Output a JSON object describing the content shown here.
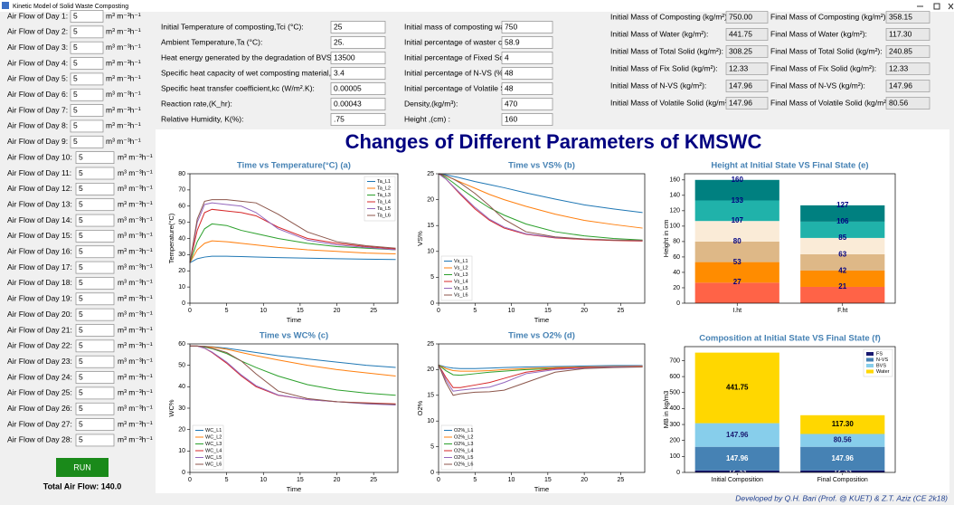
{
  "window": {
    "title": "Kinetic Model of Solid Waste Composting"
  },
  "air_flow": {
    "rows": [
      {
        "label": "Air Flow of Day 1:",
        "value": "5",
        "unit": "m³ m⁻³h⁻¹"
      },
      {
        "label": "Air Flow of Day 2:",
        "value": "5",
        "unit": "m³ m⁻³h⁻¹"
      },
      {
        "label": "Air Flow of Day 3:",
        "value": "5",
        "unit": "m³ m⁻³h⁻¹"
      },
      {
        "label": "Air Flow of Day 4:",
        "value": "5",
        "unit": "m³ m⁻³h⁻¹"
      },
      {
        "label": "Air Flow of Day 5:",
        "value": "5",
        "unit": "m³ m⁻³h⁻¹"
      },
      {
        "label": "Air Flow of Day 6:",
        "value": "5",
        "unit": "m³ m⁻³h⁻¹"
      },
      {
        "label": "Air Flow of Day 7:",
        "value": "5",
        "unit": "m³ m⁻³h⁻¹"
      },
      {
        "label": "Air Flow of Day 8:",
        "value": "5",
        "unit": "m³ m⁻³h⁻¹"
      },
      {
        "label": "Air Flow of Day 9:",
        "value": "5",
        "unit": "m³ m⁻³h⁻¹"
      },
      {
        "label": "Air Flow of Day 10:",
        "value": "5",
        "unit": "m³ m⁻³h⁻¹"
      },
      {
        "label": "Air Flow of Day 11:",
        "value": "5",
        "unit": "m³ m⁻³h⁻¹"
      },
      {
        "label": "Air Flow of Day 12:",
        "value": "5",
        "unit": "m³ m⁻³h⁻¹"
      },
      {
        "label": "Air Flow of Day 13:",
        "value": "5",
        "unit": "m³ m⁻³h⁻¹"
      },
      {
        "label": "Air Flow of Day 14:",
        "value": "5",
        "unit": "m³ m⁻³h⁻¹"
      },
      {
        "label": "Air Flow of Day 15:",
        "value": "5",
        "unit": "m³ m⁻³h⁻¹"
      },
      {
        "label": "Air Flow of Day 16:",
        "value": "5",
        "unit": "m³ m⁻³h⁻¹"
      },
      {
        "label": "Air Flow of Day 17:",
        "value": "5",
        "unit": "m³ m⁻³h⁻¹"
      },
      {
        "label": "Air Flow of Day 18:",
        "value": "5",
        "unit": "m³ m⁻³h⁻¹"
      },
      {
        "label": "Air Flow of Day 19:",
        "value": "5",
        "unit": "m³ m⁻³h⁻¹"
      },
      {
        "label": "Air Flow of Day 20:",
        "value": "5",
        "unit": "m³ m⁻³h⁻¹"
      },
      {
        "label": "Air Flow of Day 21:",
        "value": "5",
        "unit": "m³ m⁻³h⁻¹"
      },
      {
        "label": "Air Flow of Day 22:",
        "value": "5",
        "unit": "m³ m⁻³h⁻¹"
      },
      {
        "label": "Air Flow of Day 23:",
        "value": "5",
        "unit": "m³ m⁻³h⁻¹"
      },
      {
        "label": "Air Flow of Day 24:",
        "value": "5",
        "unit": "m³ m⁻³h⁻¹"
      },
      {
        "label": "Air Flow of Day 25:",
        "value": "5",
        "unit": "m³ m⁻³h⁻¹"
      },
      {
        "label": "Air Flow of Day 26:",
        "value": "5",
        "unit": "m³ m⁻³h⁻¹"
      },
      {
        "label": "Air Flow of Day 27:",
        "value": "5",
        "unit": "m³ m⁻³h⁻¹"
      },
      {
        "label": "Air Flow of Day 28:",
        "value": "5",
        "unit": "m³ m⁻³h⁻¹"
      }
    ],
    "button": "RUN",
    "total": "Total Air Flow: 140.0"
  },
  "parameters": [
    [
      {
        "label": "Initial Temperature of composting,Tci (°C):",
        "value": "25"
      },
      {
        "label": "Ambient Temperature,Ta (°C):",
        "value": "25."
      },
      {
        "label": "Heat energy generated by the degradation of BVS, (kJ/kg):",
        "value": "13500"
      },
      {
        "label": "Specific heat capacity of wet composting material, (J/kg.K):",
        "value": "3.4"
      },
      {
        "label": "Specific heat transfer coefficient,kc (W/m².K):",
        "value": "0.00005"
      },
      {
        "label": "Reaction rate,(K_hr):",
        "value": "0.00043"
      },
      {
        "label": "Relative Humidity, K(%):",
        "value": ".75"
      }
    ],
    [
      {
        "label": "Initial mass of composting waste (kg/m²):",
        "value": "750"
      },
      {
        "label": "Initial percentage of waster content (%):",
        "value": "58.9"
      },
      {
        "label": "Initial percentage of Fixed Solid (%):",
        "value": "4"
      },
      {
        "label": "Initial percentage of N-VS (%):",
        "value": "48"
      },
      {
        "label": "Initial percentage of Volatile Solid (%):",
        "value": "48"
      },
      {
        "label": "Density,(kg/m³):",
        "value": "470"
      },
      {
        "label": "Height ,(cm) :",
        "value": "160"
      }
    ]
  ],
  "masses": {
    "initial": [
      {
        "label": "Initial Mass of Composting (kg/m²):",
        "value": "750.00"
      },
      {
        "label": "Initial Mass of Water (kg/m²):",
        "value": "441.75"
      },
      {
        "label": "Initial Mass of Total Solid (kg/m²):",
        "value": "308.25"
      },
      {
        "label": "Initial Mass of Fix Solid (kg/m²):",
        "value": "12.33"
      },
      {
        "label": "Initial Mass of N-VS (kg/m²):",
        "value": "147.96"
      },
      {
        "label": "Initial Mass of Volatile Solid (kg/m²):",
        "value": "147.96"
      }
    ],
    "final": [
      {
        "label": "Final Mass of Composting (kg/m²):",
        "value": "358.15"
      },
      {
        "label": "Final Mass of Water (kg/m²):",
        "value": "117.30"
      },
      {
        "label": "Final Mass of Total Solid (kg/m²):",
        "value": "240.85"
      },
      {
        "label": "Final Mass of Fix Solid (kg/m²):",
        "value": "12.33"
      },
      {
        "label": "Final Mass of N-VS (kg/m²):",
        "value": "147.96"
      },
      {
        "label": "Final Mass of Volatile Solid (kg/m²):",
        "value": "80.56"
      }
    ]
  },
  "figure_title": "Changes of Different Parameters of KMSWC",
  "chart_data": [
    {
      "type": "line",
      "title": "Time vs Temperature(°C) (a)",
      "x_label": "Time",
      "y_label": "Temperature(°C)",
      "x": [
        0,
        1,
        2,
        3,
        5,
        7,
        9,
        12,
        16,
        20,
        24,
        28
      ],
      "xlim": [
        0,
        28.3
      ],
      "xticks": [
        0,
        5,
        10,
        15,
        20,
        25
      ],
      "ylim": [
        0,
        80
      ],
      "yticks": [
        0,
        10,
        20,
        30,
        40,
        50,
        60,
        70,
        80
      ],
      "legend": "upper right",
      "series": [
        {
          "name": "Ta_L1",
          "color": "#1f77b4",
          "values": [
            25,
            27.5,
            28.5,
            29,
            29,
            28.8,
            28.5,
            28.2,
            27.8,
            27.5,
            27.2,
            27
          ]
        },
        {
          "name": "Ta_L2",
          "color": "#ff7f0e",
          "values": [
            25,
            33,
            37,
            38.5,
            38,
            37,
            36,
            34.5,
            33,
            32,
            31,
            30.5
          ]
        },
        {
          "name": "Ta_L3",
          "color": "#2ca02c",
          "values": [
            25,
            38,
            46,
            49,
            48,
            45,
            43,
            40,
            37,
            35,
            34,
            33
          ]
        },
        {
          "name": "Ta_L4",
          "color": "#d62728",
          "values": [
            25,
            45,
            56,
            58,
            57,
            56,
            54,
            47,
            40,
            37,
            35,
            33.5
          ]
        },
        {
          "name": "Ta_L5",
          "color": "#9467bd",
          "values": [
            25,
            50,
            61,
            62,
            61,
            60,
            56,
            46,
            39,
            36,
            34.5,
            33
          ]
        },
        {
          "name": "Ta_L6",
          "color": "#8c564b",
          "values": [
            25,
            52,
            63,
            64,
            64,
            63,
            62,
            55,
            44,
            38,
            35.5,
            34
          ]
        }
      ]
    },
    {
      "type": "line",
      "title": "Time vs VS% (b)",
      "x_label": "Time",
      "y_label": "VS%",
      "x": [
        0,
        1,
        2,
        3,
        5,
        7,
        9,
        12,
        16,
        20,
        24,
        28
      ],
      "xlim": [
        0,
        28.3
      ],
      "xticks": [
        0,
        5,
        10,
        15,
        20,
        25
      ],
      "ylim": [
        0,
        25
      ],
      "yticks": [
        0,
        5,
        10,
        15,
        20,
        25
      ],
      "legend": "lower left",
      "series": [
        {
          "name": "Vs_L1",
          "color": "#1f77b4",
          "values": [
            25,
            24.8,
            24.5,
            24.2,
            23.5,
            22.9,
            22.3,
            21.3,
            20.1,
            19,
            18.2,
            17.5
          ]
        },
        {
          "name": "Vs_L2",
          "color": "#ff7f0e",
          "values": [
            25,
            24.6,
            24,
            23.4,
            22.2,
            21,
            20,
            18.7,
            17.2,
            16,
            15.2,
            14.5
          ]
        },
        {
          "name": "Vs_L3",
          "color": "#2ca02c",
          "values": [
            25,
            24.3,
            23.3,
            22.2,
            20.2,
            18.4,
            17,
            15.3,
            13.8,
            13,
            12.5,
            12.2
          ]
        },
        {
          "name": "Vs_L4",
          "color": "#d62728",
          "values": [
            25,
            24,
            22.5,
            21,
            18.2,
            16,
            14.5,
            13.3,
            12.6,
            12.3,
            12.1,
            12
          ]
        },
        {
          "name": "Vs_L5",
          "color": "#9467bd",
          "values": [
            25,
            24,
            22.6,
            21.2,
            18.5,
            16.2,
            14.7,
            13.4,
            12.7,
            12.4,
            12.2,
            12.1
          ]
        },
        {
          "name": "Vs_L6",
          "color": "#8c564b",
          "values": [
            25,
            24.6,
            24,
            23.2,
            21.2,
            18.8,
            16.2,
            13.8,
            12.8,
            12.4,
            12.2,
            12.1
          ]
        }
      ]
    },
    {
      "type": "line",
      "title": "Time vs WC% (c)",
      "x_label": "Time",
      "y_label": "WC%",
      "x": [
        0,
        1,
        2,
        3,
        5,
        7,
        9,
        12,
        16,
        20,
        24,
        28
      ],
      "xlim": [
        0,
        28.3
      ],
      "xticks": [
        0,
        5,
        10,
        15,
        20,
        25
      ],
      "ylim": [
        0,
        60
      ],
      "yticks": [
        0,
        10,
        20,
        30,
        40,
        50,
        60
      ],
      "legend": "lower left",
      "series": [
        {
          "name": "WC_L1",
          "color": "#1f77b4",
          "values": [
            59,
            59,
            58.9,
            58.7,
            58,
            57,
            56,
            54.5,
            53,
            51.5,
            50,
            49
          ]
        },
        {
          "name": "WC_L2",
          "color": "#ff7f0e",
          "values": [
            59,
            59,
            58.8,
            58.5,
            57.5,
            56,
            54.5,
            52.5,
            50,
            48,
            46.5,
            45
          ]
        },
        {
          "name": "WC_L3",
          "color": "#2ca02c",
          "values": [
            59,
            59,
            58.5,
            57.8,
            55.5,
            52,
            49,
            45,
            41,
            38.5,
            37,
            36
          ]
        },
        {
          "name": "WC_L4",
          "color": "#d62728",
          "values": [
            59,
            59,
            58,
            56,
            51,
            45,
            40,
            36,
            34,
            33,
            32.5,
            32
          ]
        },
        {
          "name": "WC_L5",
          "color": "#9467bd",
          "values": [
            59,
            59,
            58,
            56.2,
            51.5,
            45.5,
            40.5,
            36.2,
            34,
            33,
            32,
            31.5
          ]
        },
        {
          "name": "WC_L6",
          "color": "#8c564b",
          "values": [
            59,
            59,
            58.8,
            58,
            56,
            52,
            46,
            38,
            34.5,
            33,
            32.3,
            31.8
          ]
        }
      ]
    },
    {
      "type": "line",
      "title": "Time vs O2% (d)",
      "x_label": "Time",
      "y_label": "O2%",
      "x": [
        0,
        1,
        2,
        3,
        5,
        7,
        9,
        12,
        16,
        20,
        24,
        28
      ],
      "xlim": [
        0,
        28.3
      ],
      "xticks": [
        0,
        5,
        10,
        15,
        20,
        25
      ],
      "ylim": [
        0,
        25
      ],
      "yticks": [
        0,
        5,
        10,
        15,
        20,
        25
      ],
      "legend": "lower left",
      "series": [
        {
          "name": "O2%_L1",
          "color": "#1f77b4",
          "values": [
            20.9,
            20.5,
            20.3,
            20.2,
            20.2,
            20.3,
            20.4,
            20.5,
            20.6,
            20.7,
            20.8,
            20.8
          ]
        },
        {
          "name": "O2%_L2",
          "color": "#ff7f0e",
          "values": [
            20.9,
            20.2,
            19.8,
            19.7,
            19.7,
            19.8,
            20,
            20.2,
            20.4,
            20.5,
            20.6,
            20.7
          ]
        },
        {
          "name": "O2%_L3",
          "color": "#2ca02c",
          "values": [
            20.9,
            19.8,
            19,
            18.9,
            19.2,
            19.5,
            19.7,
            20,
            20.2,
            20.4,
            20.5,
            20.6
          ]
        },
        {
          "name": "O2%_L4",
          "color": "#d62728",
          "values": [
            20.9,
            18.5,
            16.5,
            16.5,
            17,
            17.5,
            18.3,
            19.5,
            20.2,
            20.4,
            20.5,
            20.6
          ]
        },
        {
          "name": "O2%_L5",
          "color": "#9467bd",
          "values": [
            20.9,
            18,
            15.8,
            16,
            16.3,
            16.6,
            17.5,
            19.2,
            20,
            20.3,
            20.5,
            20.6
          ]
        },
        {
          "name": "O2%_L6",
          "color": "#8c564b",
          "values": [
            20.9,
            17.5,
            15,
            15.3,
            15.6,
            15.7,
            16,
            17.5,
            19.5,
            20.2,
            20.4,
            20.5
          ]
        }
      ]
    },
    {
      "type": "stacked_bar",
      "title": "Height at Initial State VS Final State (e)",
      "y_label": "Height in cm",
      "categories": [
        "I.ht",
        "F.ht"
      ],
      "ylim": [
        0,
        168
      ],
      "yticks": [
        0,
        20,
        40,
        60,
        80,
        100,
        120,
        140,
        160
      ],
      "series": [
        {
          "color": "#ff6347",
          "values": [
            26.67,
            21.17
          ]
        },
        {
          "color": "#ff8c00",
          "values": [
            26.67,
            21.17
          ]
        },
        {
          "color": "#deb887",
          "values": [
            26.67,
            21.17
          ]
        },
        {
          "color": "#faebd7",
          "values": [
            26.67,
            21.17
          ]
        },
        {
          "color": "#20b2aa",
          "values": [
            26.67,
            21.17
          ]
        },
        {
          "color": "#008080",
          "values": [
            26.67,
            21.17
          ]
        }
      ],
      "level_labels": [
        [
          27,
          53,
          80,
          107,
          133,
          160
        ],
        [
          21,
          42,
          63,
          85,
          106,
          127
        ]
      ]
    },
    {
      "type": "stacked_bar",
      "title": "Composition at Initial State VS Final State (f)",
      "y_label": "MB in kg/m3",
      "categories": [
        "Initial Composition",
        "Final Composition"
      ],
      "ylim": [
        0,
        787.5
      ],
      "yticks": [
        0,
        100,
        200,
        300,
        400,
        500,
        600,
        700
      ],
      "legend": "upper right",
      "series": [
        {
          "name": "FS",
          "color": "#191970",
          "label_color": "#ffffff",
          "values": [
            12.33,
            12.33
          ],
          "value_labels": [
            "12.33",
            "12.33"
          ]
        },
        {
          "name": "N-VS",
          "color": "#4682b4",
          "label_color": "#ffffff",
          "values": [
            147.96,
            147.96
          ],
          "value_labels": [
            "147.96",
            "147.96"
          ]
        },
        {
          "name": "BVS",
          "color": "#87ceeb",
          "label_color": "#191970",
          "values": [
            147.96,
            80.56
          ],
          "value_labels": [
            "147.96",
            "80.56"
          ]
        },
        {
          "name": "Water",
          "color": "#ffd700",
          "label_color": "#000000",
          "values": [
            441.75,
            117.3
          ],
          "value_labels": [
            "441.75",
            "117.30"
          ]
        }
      ]
    }
  ],
  "footer": "Developed by Q.H. Bari (Prof. @ KUET) & Z.T. Aziz (CE 2k18)"
}
